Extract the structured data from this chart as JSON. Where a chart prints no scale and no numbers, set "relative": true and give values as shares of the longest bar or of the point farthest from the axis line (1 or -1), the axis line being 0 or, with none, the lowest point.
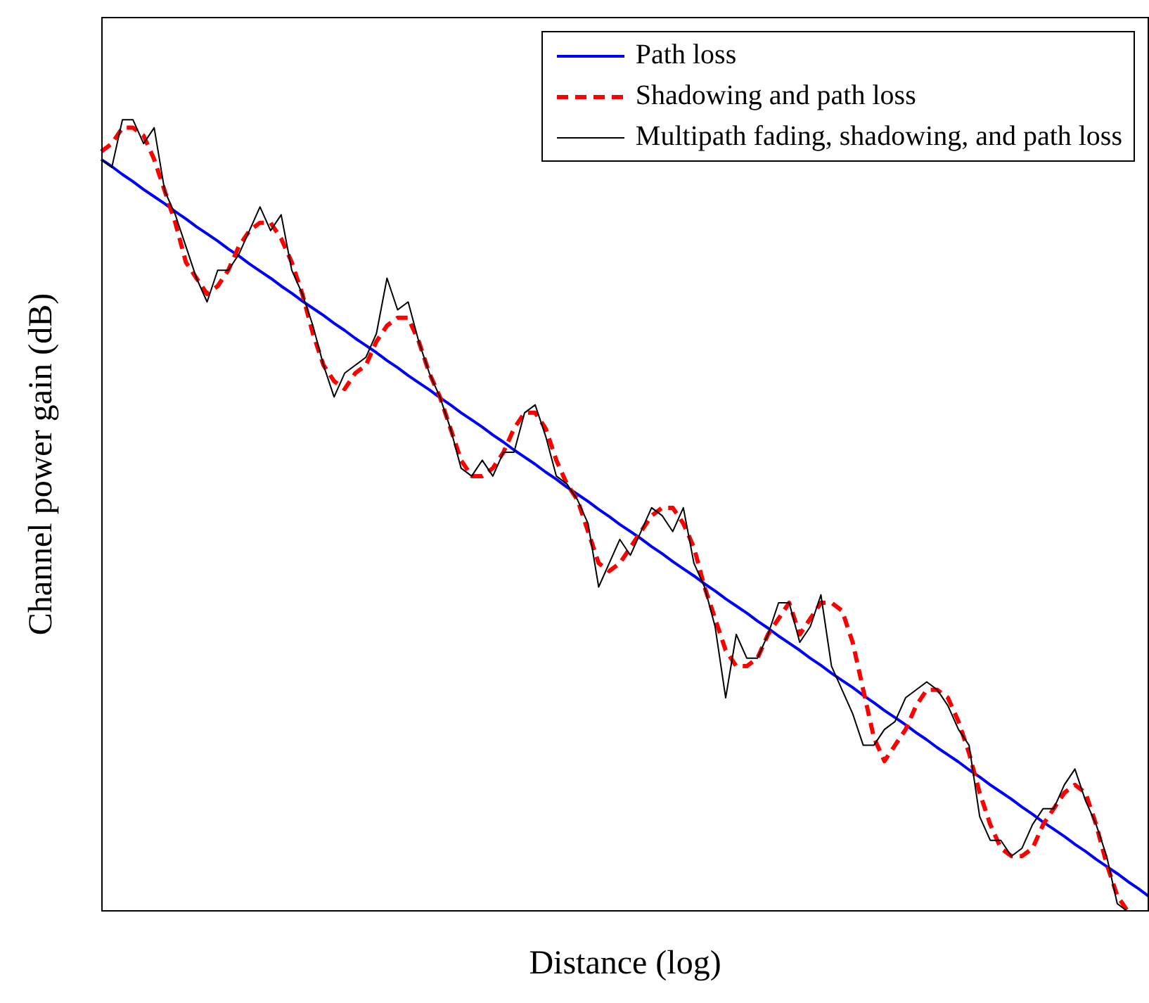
{
  "chart_data": {
    "type": "line",
    "xlabel": "Distance (log)",
    "ylabel": "Channel power gain (dB)",
    "relative": true,
    "grid": false,
    "legend": "top right",
    "tick_labels": false,
    "marker": "none",
    "categories": [
      null,
      null,
      null,
      null,
      null,
      null,
      null,
      null,
      null,
      null,
      null,
      null,
      null,
      null,
      null,
      null,
      null,
      null,
      null,
      null,
      null,
      null,
      null,
      null,
      null,
      null,
      null,
      null,
      null,
      null,
      null,
      null,
      null,
      null,
      null,
      null,
      null,
      null,
      null,
      null,
      null,
      null,
      null,
      null,
      null,
      null,
      null,
      null,
      null,
      null,
      null,
      null,
      null,
      null,
      null,
      null,
      null,
      null,
      null,
      null,
      null,
      null,
      null,
      null,
      null,
      null,
      null,
      null,
      null,
      null,
      null,
      null,
      null,
      null,
      null,
      null,
      null,
      null,
      null,
      null,
      null,
      null,
      null,
      null,
      null,
      null,
      null,
      null,
      null,
      null,
      null,
      null,
      null,
      null,
      null,
      null,
      null,
      null,
      null,
      null
    ],
    "series": [
      {
        "name": "Path loss",
        "color": "#0000ff",
        "line_style": "solid",
        "values": [
          0.95,
          0.941,
          0.931,
          0.922,
          0.912,
          0.903,
          0.894,
          0.884,
          0.875,
          0.865,
          0.856,
          0.847,
          0.837,
          0.828,
          0.818,
          0.809,
          0.8,
          0.79,
          0.781,
          0.771,
          0.762,
          0.753,
          0.743,
          0.734,
          0.724,
          0.715,
          0.706,
          0.696,
          0.687,
          0.677,
          0.668,
          0.659,
          0.649,
          0.64,
          0.63,
          0.621,
          0.612,
          0.602,
          0.593,
          0.583,
          0.574,
          0.565,
          0.555,
          0.546,
          0.536,
          0.527,
          0.518,
          0.508,
          0.499,
          0.489,
          0.48,
          0.471,
          0.461,
          0.452,
          0.442,
          0.433,
          0.424,
          0.414,
          0.405,
          0.395,
          0.386,
          0.377,
          0.367,
          0.358,
          0.348,
          0.339,
          0.33,
          0.32,
          0.311,
          0.301,
          0.292,
          0.283,
          0.273,
          0.264,
          0.254,
          0.245,
          0.236,
          0.226,
          0.217,
          0.207,
          0.198,
          0.189,
          0.179,
          0.17,
          0.16,
          0.151,
          0.142,
          0.132,
          0.123,
          0.113,
          0.104,
          0.095,
          0.085,
          0.076,
          0.066,
          0.057,
          0.048,
          0.038,
          0.029,
          0.019
        ]
      },
      {
        "name": "Shadowing and path loss",
        "color": "#ff0000",
        "line_style": "dashed",
        "values": [
          0.96,
          0.97,
          0.99,
          0.99,
          0.98,
          0.95,
          0.91,
          0.87,
          0.82,
          0.8,
          0.78,
          0.79,
          0.81,
          0.84,
          0.86,
          0.87,
          0.87,
          0.85,
          0.82,
          0.78,
          0.73,
          0.69,
          0.67,
          0.66,
          0.68,
          0.69,
          0.72,
          0.74,
          0.75,
          0.75,
          0.72,
          0.68,
          0.65,
          0.61,
          0.57,
          0.55,
          0.55,
          0.56,
          0.58,
          0.61,
          0.63,
          0.63,
          0.61,
          0.57,
          0.54,
          0.52,
          0.48,
          0.44,
          0.43,
          0.44,
          0.46,
          0.48,
          0.5,
          0.51,
          0.51,
          0.49,
          0.46,
          0.41,
          0.37,
          0.33,
          0.31,
          0.31,
          0.32,
          0.35,
          0.37,
          0.39,
          0.35,
          0.37,
          0.39,
          0.39,
          0.38,
          0.34,
          0.28,
          0.22,
          0.19,
          0.21,
          0.23,
          0.26,
          0.28,
          0.28,
          0.27,
          0.24,
          0.2,
          0.15,
          0.11,
          0.08,
          0.07,
          0.07,
          0.08,
          0.11,
          0.13,
          0.15,
          0.16,
          0.15,
          0.11,
          0.06,
          0.02,
          0,
          null,
          null
        ]
      },
      {
        "name": "Multipath fading, shadowing, and path loss",
        "color": "#000000",
        "line_style": "solid",
        "values": [
          0.95,
          0.94,
          1,
          1,
          0.97,
          0.99,
          0.91,
          0.88,
          0.84,
          0.8,
          0.77,
          0.81,
          0.81,
          0.83,
          0.86,
          0.89,
          0.86,
          0.88,
          0.81,
          0.78,
          0.74,
          0.69,
          0.65,
          0.68,
          0.69,
          0.7,
          0.73,
          0.8,
          0.76,
          0.77,
          0.72,
          0.68,
          0.65,
          0.61,
          0.56,
          0.55,
          0.57,
          0.55,
          0.58,
          0.58,
          0.63,
          0.64,
          0.6,
          0.55,
          0.54,
          0.52,
          0.49,
          0.41,
          0.44,
          0.47,
          0.45,
          0.48,
          0.51,
          0.5,
          0.48,
          0.51,
          0.44,
          0.41,
          0.36,
          0.27,
          0.35,
          0.32,
          0.32,
          0.35,
          0.39,
          0.39,
          0.34,
          0.36,
          0.4,
          0.31,
          0.28,
          0.25,
          0.21,
          0.21,
          0.23,
          0.24,
          0.27,
          0.28,
          0.29,
          0.28,
          0.26,
          0.23,
          0.21,
          0.12,
          0.09,
          0.09,
          0.07,
          0.08,
          0.11,
          0.13,
          0.13,
          0.16,
          0.18,
          0.14,
          0.11,
          0.07,
          0.01,
          0,
          0,
          0
        ]
      }
    ]
  }
}
